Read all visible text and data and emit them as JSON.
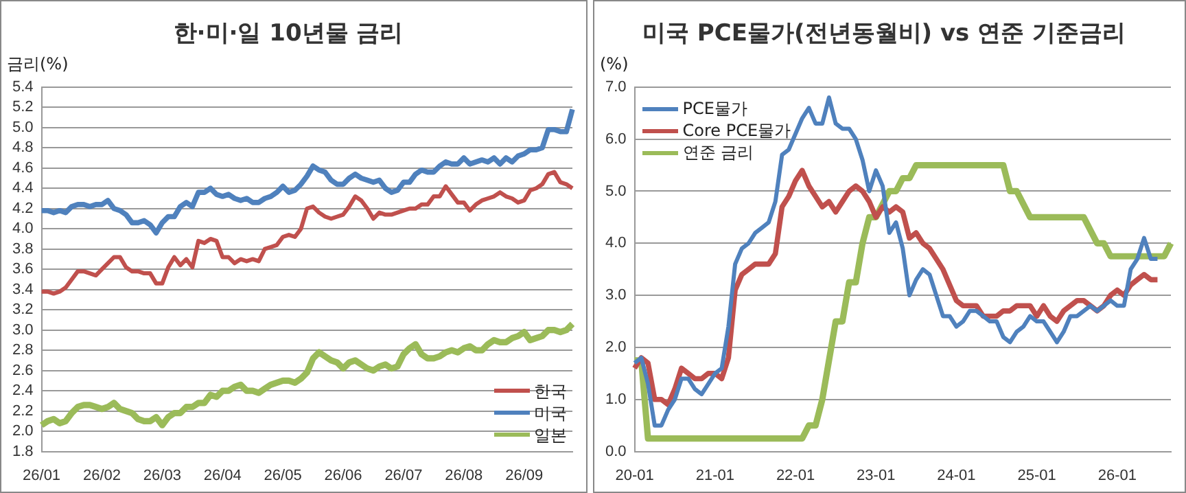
{
  "chart_data": [
    {
      "type": "line",
      "title": "한·미·일 10년물 금리",
      "ylabel": "금리(%)",
      "categories": [
        "26/01",
        null,
        null,
        null,
        null,
        null,
        null,
        null,
        null,
        null,
        "26/02",
        null,
        null,
        null,
        null,
        null,
        null,
        null,
        null,
        null,
        "26/03",
        null,
        null,
        null,
        null,
        null,
        null,
        null,
        null,
        null,
        "26/04",
        null,
        null,
        null,
        null,
        null,
        null,
        null,
        null,
        null,
        "26/05",
        null,
        null,
        null,
        null,
        null,
        null,
        null,
        null,
        null,
        "26/06",
        null,
        null,
        null,
        null,
        null,
        null,
        null,
        null,
        null,
        "26/07",
        null,
        null,
        null,
        null,
        null,
        null,
        null,
        null,
        null,
        "26/08",
        null,
        null,
        null,
        null,
        null,
        null,
        null,
        null,
        null,
        "26/09",
        null,
        null,
        null,
        null,
        null,
        null,
        null,
        null
      ],
      "series": [
        {
          "name": "한국",
          "color": "#c0504d",
          "values": [
            3.38,
            3.38,
            3.36,
            3.38,
            3.42,
            3.5,
            3.58,
            3.58,
            3.56,
            3.54,
            3.6,
            3.66,
            3.72,
            3.72,
            3.62,
            3.58,
            3.58,
            3.56,
            3.56,
            3.46,
            3.46,
            3.62,
            3.72,
            3.64,
            3.7,
            3.62,
            3.88,
            3.86,
            3.9,
            3.88,
            3.72,
            3.72,
            3.66,
            3.7,
            3.68,
            3.7,
            3.68,
            3.8,
            3.82,
            3.84,
            3.92,
            3.94,
            3.92,
            4.0,
            4.2,
            4.22,
            4.16,
            4.12,
            4.1,
            4.12,
            4.14,
            4.22,
            4.32,
            4.28,
            4.2,
            4.1,
            4.16,
            4.14,
            4.14,
            4.16,
            4.18,
            4.2,
            4.2,
            4.24,
            4.24,
            4.32,
            4.32,
            4.42,
            4.34,
            4.26,
            4.26,
            4.18,
            4.24,
            4.28,
            4.3,
            4.32,
            4.36,
            4.32,
            4.3,
            4.26,
            4.28,
            4.38,
            4.4,
            4.44,
            4.54,
            4.56,
            4.46,
            4.44,
            4.4
          ]
        },
        {
          "name": "미국",
          "color": "#4f81bd",
          "values": [
            4.18,
            4.18,
            4.16,
            4.18,
            4.16,
            4.22,
            4.24,
            4.24,
            4.22,
            4.24,
            4.24,
            4.28,
            4.2,
            4.18,
            4.14,
            4.06,
            4.06,
            4.08,
            4.04,
            3.96,
            4.06,
            4.12,
            4.12,
            4.22,
            4.26,
            4.22,
            4.36,
            4.36,
            4.4,
            4.34,
            4.32,
            4.34,
            4.3,
            4.28,
            4.3,
            4.26,
            4.26,
            4.3,
            4.32,
            4.36,
            4.42,
            4.36,
            4.38,
            4.44,
            4.52,
            4.62,
            4.58,
            4.56,
            4.48,
            4.44,
            4.44,
            4.5,
            4.54,
            4.5,
            4.48,
            4.46,
            4.48,
            4.4,
            4.36,
            4.38,
            4.46,
            4.46,
            4.54,
            4.58,
            4.56,
            4.56,
            4.62,
            4.66,
            4.64,
            4.64,
            4.7,
            4.64,
            4.66,
            4.68,
            4.66,
            4.7,
            4.64,
            4.7,
            4.66,
            4.72,
            4.74,
            4.78,
            4.78,
            4.8,
            4.98,
            4.98,
            4.96,
            4.96,
            5.18
          ]
        },
        {
          "name": "일본",
          "color": "#9bbb59",
          "values": [
            2.06,
            2.1,
            2.12,
            2.08,
            2.1,
            2.18,
            2.24,
            2.26,
            2.26,
            2.24,
            2.22,
            2.24,
            2.28,
            2.22,
            2.2,
            2.18,
            2.12,
            2.1,
            2.1,
            2.14,
            2.06,
            2.14,
            2.18,
            2.18,
            2.24,
            2.24,
            2.28,
            2.28,
            2.36,
            2.34,
            2.4,
            2.4,
            2.44,
            2.46,
            2.4,
            2.4,
            2.38,
            2.42,
            2.46,
            2.48,
            2.5,
            2.5,
            2.48,
            2.52,
            2.58,
            2.72,
            2.78,
            2.74,
            2.7,
            2.68,
            2.62,
            2.68,
            2.7,
            2.66,
            2.62,
            2.6,
            2.64,
            2.66,
            2.62,
            2.64,
            2.76,
            2.82,
            2.86,
            2.76,
            2.72,
            2.72,
            2.74,
            2.78,
            2.8,
            2.78,
            2.82,
            2.84,
            2.8,
            2.8,
            2.86,
            2.9,
            2.88,
            2.88,
            2.92,
            2.94,
            2.98,
            2.9,
            2.92,
            2.94,
            3.0,
            3.0,
            2.98,
            3.0,
            3.06
          ]
        }
      ],
      "ylim": [
        1.8,
        5.4
      ],
      "yticks": [
        1.8,
        {
          "value": 2,
          "label": "2.0"
        },
        2.2,
        2.4,
        2.6,
        2.8,
        {
          "value": 3,
          "label": "3.0"
        },
        3.2,
        3.4,
        3.6,
        3.8,
        {
          "value": 4,
          "label": "4.0"
        },
        4.2,
        4.4,
        4.6,
        4.8,
        {
          "value": 5,
          "label": "5.0"
        },
        5.2,
        5.4
      ],
      "grid": "y",
      "legend": "bottom right"
    },
    {
      "type": "line",
      "title": "미국 PCE물가(전년동월비) vs 연준 기준금리",
      "ylabel": "(%)",
      "categories": [
        "20-01",
        null,
        null,
        null,
        null,
        null,
        null,
        null,
        null,
        null,
        null,
        null,
        "21-01",
        null,
        null,
        null,
        null,
        null,
        null,
        null,
        null,
        null,
        null,
        null,
        "22-01",
        null,
        null,
        null,
        null,
        null,
        null,
        null,
        null,
        null,
        null,
        null,
        "23-01",
        null,
        null,
        null,
        null,
        null,
        null,
        null,
        null,
        null,
        null,
        null,
        "24-01",
        null,
        null,
        null,
        null,
        null,
        null,
        null,
        null,
        null,
        null,
        null,
        "25-01",
        null,
        null,
        null,
        null,
        null,
        null,
        null,
        null,
        null,
        null,
        null,
        "26-01",
        null,
        null,
        null,
        null,
        null,
        null,
        null,
        null
      ],
      "series": [
        {
          "name": "PCE물가",
          "color": "#4f81bd",
          "values": [
            1.7,
            1.8,
            1.3,
            0.5,
            0.5,
            0.8,
            1.0,
            1.4,
            1.4,
            1.2,
            1.1,
            1.3,
            1.5,
            1.6,
            2.4,
            3.6,
            3.9,
            4.0,
            4.2,
            4.3,
            4.4,
            4.8,
            5.7,
            5.8,
            6.1,
            6.4,
            6.6,
            6.3,
            6.3,
            6.8,
            6.3,
            6.2,
            6.2,
            6.0,
            5.6,
            5.0,
            5.4,
            5.1,
            4.2,
            4.4,
            3.9,
            3.0,
            3.3,
            3.5,
            3.4,
            3.0,
            2.6,
            2.6,
            2.4,
            2.5,
            2.7,
            2.7,
            2.6,
            2.5,
            2.5,
            2.2,
            2.1,
            2.3,
            2.4,
            2.6,
            2.5,
            2.5,
            2.3,
            2.1,
            2.3,
            2.6,
            2.6,
            2.7,
            2.8,
            2.7,
            2.8,
            2.9,
            2.8,
            2.8,
            3.5,
            3.7,
            4.1,
            3.7,
            3.7,
            null,
            null
          ]
        },
        {
          "name": "Core PCE물가",
          "color": "#c0504d",
          "values": [
            1.6,
            1.8,
            1.7,
            1.0,
            1.0,
            0.9,
            1.2,
            1.6,
            1.5,
            1.4,
            1.4,
            1.5,
            1.5,
            1.4,
            1.8,
            3.1,
            3.4,
            3.5,
            3.6,
            3.6,
            3.6,
            3.8,
            4.7,
            4.9,
            5.2,
            5.4,
            5.1,
            4.9,
            4.7,
            4.8,
            4.6,
            4.8,
            5.0,
            5.1,
            5.0,
            4.8,
            4.5,
            4.7,
            4.6,
            4.7,
            4.6,
            4.1,
            4.2,
            4.0,
            3.9,
            3.7,
            3.5,
            3.2,
            2.9,
            2.8,
            2.8,
            2.8,
            2.6,
            2.6,
            2.6,
            2.7,
            2.7,
            2.8,
            2.8,
            2.8,
            2.6,
            2.8,
            2.6,
            2.5,
            2.7,
            2.8,
            2.9,
            2.9,
            2.8,
            2.7,
            2.8,
            3.0,
            3.1,
            3.0,
            3.2,
            3.3,
            3.4,
            3.3,
            3.3,
            null,
            null
          ]
        },
        {
          "name": "연준 금리",
          "color": "#9bbb59",
          "values": [
            1.75,
            1.75,
            0.25,
            0.25,
            0.25,
            0.25,
            0.25,
            0.25,
            0.25,
            0.25,
            0.25,
            0.25,
            0.25,
            0.25,
            0.25,
            0.25,
            0.25,
            0.25,
            0.25,
            0.25,
            0.25,
            0.25,
            0.25,
            0.25,
            0.25,
            0.25,
            0.5,
            0.5,
            1.0,
            1.75,
            2.5,
            2.5,
            3.25,
            3.25,
            4.0,
            4.5,
            4.5,
            4.75,
            5.0,
            5.0,
            5.25,
            5.25,
            5.5,
            5.5,
            5.5,
            5.5,
            5.5,
            5.5,
            5.5,
            5.5,
            5.5,
            5.5,
            5.5,
            5.5,
            5.5,
            5.5,
            5.0,
            5.0,
            4.75,
            4.5,
            4.5,
            4.5,
            4.5,
            4.5,
            4.5,
            4.5,
            4.5,
            4.5,
            4.25,
            4.0,
            4.0,
            3.75,
            3.75,
            3.75,
            3.75,
            3.75,
            3.75,
            3.75,
            3.75,
            3.75,
            4.0
          ]
        }
      ],
      "ylim": [
        0,
        7
      ],
      "yticks": [
        {
          "value": 0,
          "label": "0.0"
        },
        {
          "value": 1,
          "label": "1.0"
        },
        {
          "value": 2,
          "label": "2.0"
        },
        {
          "value": 3,
          "label": "3.0"
        },
        {
          "value": 4,
          "label": "4.0"
        },
        {
          "value": 5,
          "label": "5.0"
        },
        {
          "value": 6,
          "label": "6.0"
        },
        {
          "value": 7,
          "label": "7.0"
        }
      ],
      "grid": "y",
      "legend": "top left"
    }
  ]
}
